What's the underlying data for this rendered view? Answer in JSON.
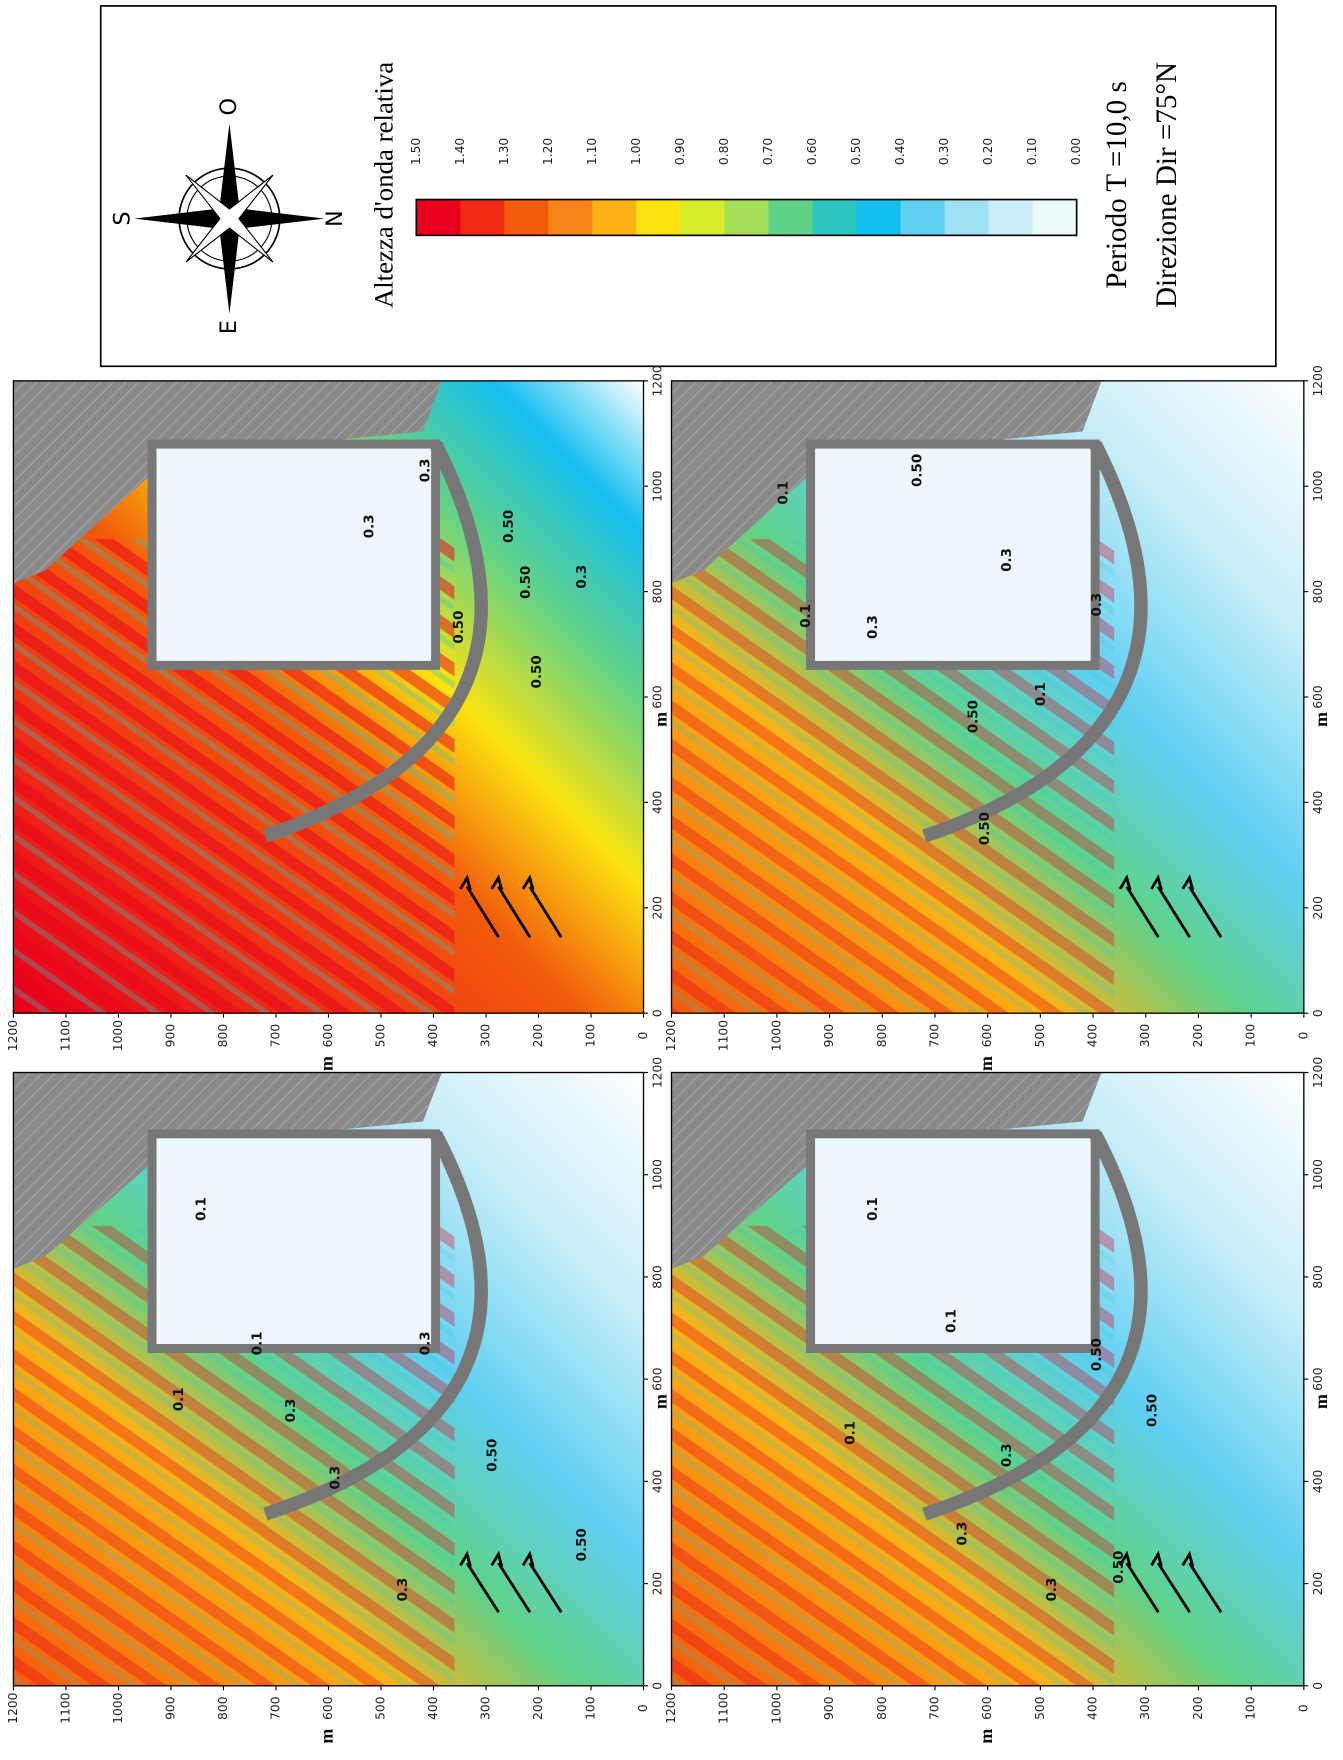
{
  "legend": {
    "title": "Altezza d'onda relativa",
    "compass": [
      "S",
      "O",
      "N",
      "E"
    ],
    "colorbar": {
      "labels": [
        "1.50",
        "1.40",
        "1.30",
        "1.20",
        "1.10",
        "1.00",
        "0.90",
        "0.80",
        "0.70",
        "0.60",
        "0.50",
        "0.40",
        "0.30",
        "0.20",
        "0.10",
        "0.00"
      ],
      "colors": [
        "#e8001c",
        "#ee2a12",
        "#f25a0c",
        "#f7861a",
        "#fbb216",
        "#fbe30f",
        "#d6ec2a",
        "#a6de5a",
        "#5fd28a",
        "#2ec6c0",
        "#14bff0",
        "#5fcff2",
        "#9fe0f5",
        "#c9eef8",
        "#eef9fc"
      ]
    },
    "period": "Periodo  T =10,0 s",
    "direction": "Direzione  Dir =75°N"
  },
  "panels": [
    {
      "y_ticks": [
        0,
        100,
        200,
        300,
        400,
        500,
        600,
        700,
        800,
        900,
        1000,
        1100,
        1200
      ],
      "x_ticks": [
        0,
        200,
        400,
        600,
        800,
        1000,
        1200
      ],
      "y_label": "m",
      "x_label": "m",
      "contour_labels": [
        "0.3",
        "0.50",
        "0.50",
        "0.3",
        "0.50",
        "0.3",
        "0.50"
      ]
    },
    {
      "y_ticks": [
        0,
        100,
        200,
        300,
        400,
        500,
        600,
        700,
        800,
        900,
        1000,
        1100,
        1200
      ],
      "x_ticks": [
        0,
        200,
        400,
        600,
        800,
        1000,
        1200
      ],
      "y_label": "m",
      "x_label": "m",
      "contour_labels": [
        "0.1",
        "0.1",
        "0.3",
        "0.50",
        "0.3",
        "0.50",
        "0.1",
        "0.3",
        "0.50"
      ]
    },
    {
      "y_ticks": [
        0,
        100,
        200,
        300,
        400,
        500,
        600,
        700,
        800,
        900,
        1000,
        1100,
        1200
      ],
      "x_ticks": [
        0,
        200,
        400,
        600,
        800,
        1000,
        1200
      ],
      "y_label": "m",
      "x_label": "m",
      "contour_labels": [
        "0.1",
        "0.1",
        "0.3",
        "0.3",
        "0.50",
        "0.3",
        "0.50",
        "0.1",
        "0.3"
      ]
    },
    {
      "y_ticks": [
        0,
        100,
        200,
        300,
        400,
        500,
        600,
        700,
        800,
        900,
        1000,
        1100,
        1200
      ],
      "x_ticks": [
        0,
        200,
        400,
        600,
        800,
        1000,
        1200
      ],
      "y_label": "m",
      "x_label": "m",
      "contour_labels": [
        "0.1",
        "0.1",
        "0.3",
        "0.50",
        "0.50",
        "0.3",
        "0.50",
        "0.1",
        "0.3"
      ]
    }
  ]
}
